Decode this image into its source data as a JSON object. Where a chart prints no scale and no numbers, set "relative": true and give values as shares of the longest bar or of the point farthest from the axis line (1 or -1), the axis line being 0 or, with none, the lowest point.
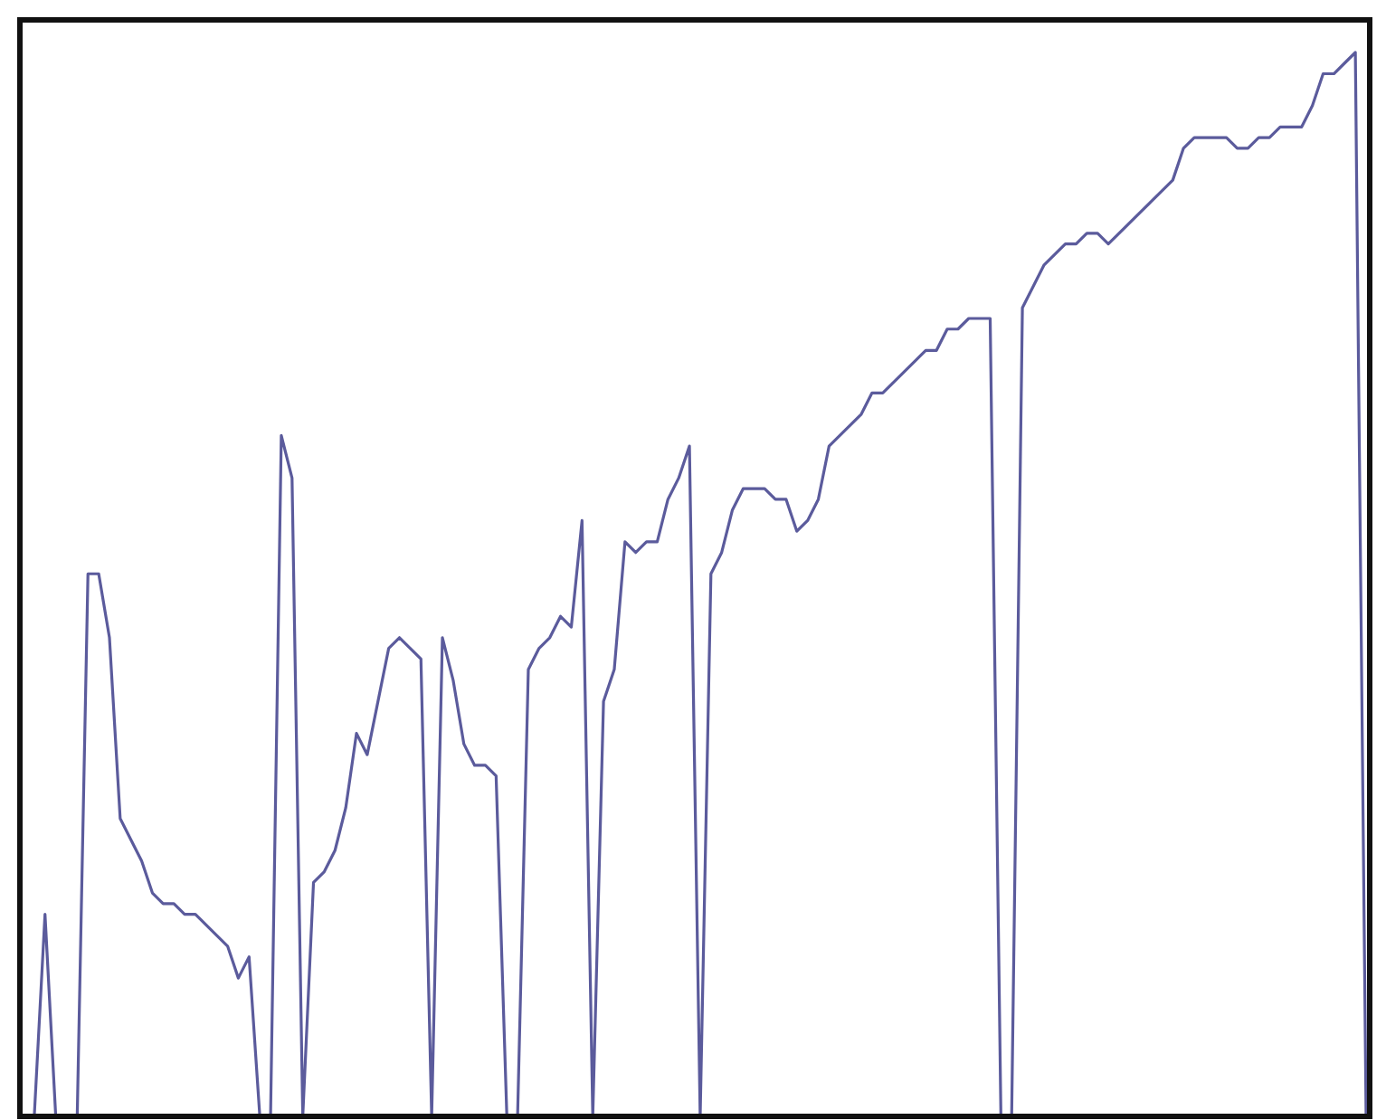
{
  "chart_data": {
    "type": "line",
    "relative": true,
    "color": "#5b5b9c",
    "marker": "none",
    "categories": [
      null,
      null,
      null,
      null,
      null,
      null,
      null,
      null,
      null,
      null,
      null,
      null,
      null,
      null,
      null,
      null,
      null,
      null,
      null,
      null,
      null,
      null,
      null,
      null,
      null,
      null,
      null,
      null,
      null,
      null,
      null,
      null,
      null,
      null,
      null,
      null,
      null,
      null,
      null,
      null,
      null,
      null,
      null,
      null,
      null,
      null,
      null,
      null,
      null,
      null,
      null,
      null,
      null,
      null,
      null,
      null,
      null,
      null,
      null,
      null,
      null,
      null,
      null,
      null,
      null,
      null,
      null,
      null,
      null,
      null,
      null,
      null,
      null,
      null,
      null,
      null,
      null,
      null,
      null,
      null,
      null,
      null,
      null,
      null,
      null,
      null,
      null,
      null,
      null,
      null,
      null,
      null,
      null,
      null,
      null,
      null,
      null,
      null,
      null,
      null,
      null,
      null,
      null,
      null,
      null,
      null,
      null,
      null,
      null,
      null,
      null,
      null,
      null,
      null,
      null,
      null,
      null,
      null,
      null,
      null,
      null,
      null,
      null,
      null,
      null,
      null
    ],
    "values": [
      0,
      0,
      0.19,
      0,
      0,
      0,
      0.51,
      0.51,
      0.45,
      0.28,
      0.26,
      0.24,
      0.21,
      0.2,
      0.2,
      0.19,
      0.19,
      0.18,
      0.17,
      0.16,
      0.13,
      0.15,
      0,
      0,
      0.64,
      0.6,
      0,
      0.22,
      0.23,
      0.25,
      0.29,
      0.36,
      0.34,
      0.39,
      0.44,
      0.45,
      0.44,
      0.43,
      0,
      0.45,
      0.41,
      0.35,
      0.33,
      0.33,
      0.32,
      0,
      0,
      0.42,
      0.44,
      0.45,
      0.47,
      0.46,
      0.56,
      0,
      0.39,
      0.42,
      0.54,
      0.53,
      0.54,
      0.54,
      0.58,
      0.6,
      0.63,
      0,
      0.51,
      0.53,
      0.57,
      0.59,
      0.59,
      0.59,
      0.58,
      0.58,
      0.55,
      0.56,
      0.58,
      0.63,
      0.64,
      0.65,
      0.66,
      0.68,
      0.68,
      0.69,
      0.7,
      0.71,
      0.72,
      0.72,
      0.74,
      0.74,
      0.75,
      0.75,
      0.75,
      0,
      0,
      0.76,
      0.78,
      0.8,
      0.81,
      0.82,
      0.82,
      0.83,
      0.83,
      0.82,
      0.83,
      0.84,
      0.85,
      0.86,
      0.87,
      0.88,
      0.91,
      0.92,
      0.92,
      0.92,
      0.92,
      0.91,
      0.91,
      0.92,
      0.92,
      0.93,
      0.93,
      0.93,
      0.95,
      0.98,
      0.98,
      0.99,
      1,
      0
    ]
  }
}
